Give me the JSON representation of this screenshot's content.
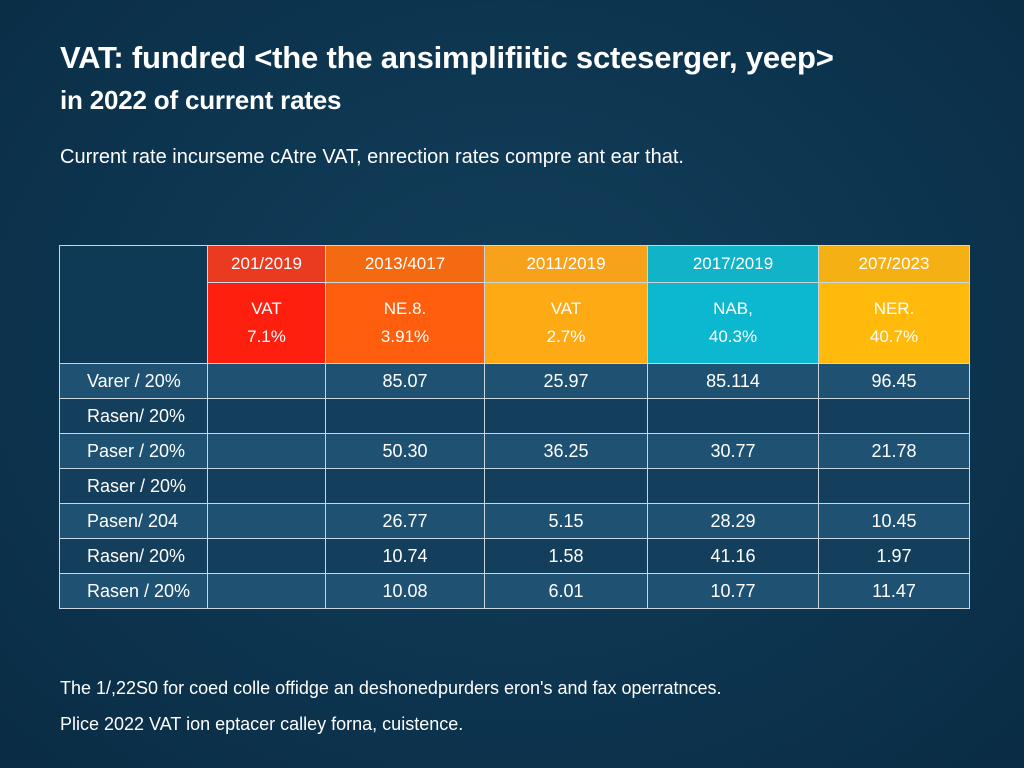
{
  "title": {
    "line1": "VAT: fundred <the the ansimplifiitic scteserger, yeep>",
    "line2": "in 2022 of current rates"
  },
  "subtitle": "Current rate incurseme cAtre VAT, enrection rates compre ant ear that.",
  "footnotes": [
    "The 1/,22S0 for coed colle offidge an deshonedpurders eron's and fax operratnces.",
    "Plice 2022 VAT ion eptacer calley forna, cuistence."
  ],
  "colors": {
    "background": "#0d3550",
    "col1": "#ff1f0f",
    "col2": "#fe5e0e",
    "col3": "#feaa14",
    "col4": "#0cb8cf",
    "col5": "#ffba0c"
  },
  "chart_data": {
    "type": "table",
    "columns": [
      {
        "period": "201/2019",
        "metric": "VAT",
        "rate": "7.1%"
      },
      {
        "period": "2013/4017",
        "metric": "NE.8.",
        "rate": "3.91%"
      },
      {
        "period": "2011/2019",
        "metric": "VAT",
        "rate": "2.7%"
      },
      {
        "period": "2017/2019",
        "metric": "NAB,",
        "rate": "40.3%"
      },
      {
        "period": "207/2023",
        "metric": "NER.",
        "rate": "40.7%"
      }
    ],
    "rows": [
      {
        "label": "Varer / 20%",
        "values": [
          "",
          "85.07",
          "25.97",
          "85.114",
          "96.45"
        ]
      },
      {
        "label": "Rasen/ 20%",
        "values": [
          "",
          "",
          "",
          "",
          ""
        ]
      },
      {
        "label": "Paser / 20%",
        "values": [
          "",
          "50.30",
          "36.25",
          "30.77",
          "21.78"
        ]
      },
      {
        "label": "Raser / 20%",
        "values": [
          "",
          "",
          "",
          "",
          ""
        ]
      },
      {
        "label": "Pasen/ 204",
        "values": [
          "",
          "26.77",
          "5.15",
          "28.29",
          "10.45"
        ]
      },
      {
        "label": "Rasen/ 20%",
        "values": [
          "",
          "10.74",
          "1.58",
          "41.16",
          "1.97"
        ]
      },
      {
        "label": "Rasen / 20%",
        "values": [
          "",
          "10.08",
          "6.01",
          "10.77",
          "11.47"
        ]
      }
    ]
  }
}
